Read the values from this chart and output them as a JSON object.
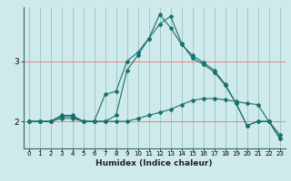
{
  "xlabel": "Humidex (Indice chaleur)",
  "bg_color": "#ceeaea",
  "line_color": "#1a7070",
  "grid_color_h": "#f08080",
  "grid_color_v": "#a0c8c8",
  "xlim": [
    -0.5,
    23.5
  ],
  "ylim": [
    1.55,
    3.9
  ],
  "yticks": [
    2,
    3
  ],
  "xticks": [
    0,
    1,
    2,
    3,
    4,
    5,
    6,
    7,
    8,
    9,
    10,
    11,
    12,
    13,
    14,
    15,
    16,
    17,
    18,
    19,
    20,
    21,
    22,
    23
  ],
  "series1_x": [
    0,
    1,
    2,
    3,
    4,
    5,
    6,
    7,
    8,
    9,
    10,
    11,
    12,
    13,
    14,
    15,
    16,
    17,
    18,
    19,
    20,
    21,
    22,
    23
  ],
  "series1_y": [
    2.0,
    2.0,
    2.0,
    2.05,
    2.05,
    2.0,
    2.0,
    2.0,
    2.0,
    2.0,
    2.05,
    2.1,
    2.15,
    2.2,
    2.28,
    2.35,
    2.38,
    2.38,
    2.36,
    2.33,
    2.3,
    2.28,
    2.0,
    1.78
  ],
  "series2_x": [
    0,
    1,
    2,
    3,
    4,
    5,
    6,
    7,
    8,
    9,
    10,
    11,
    12,
    13,
    14,
    15,
    16,
    17,
    18,
    19,
    20,
    21,
    22,
    23
  ],
  "series2_y": [
    2.0,
    2.0,
    2.0,
    2.1,
    2.1,
    2.0,
    2.0,
    2.0,
    2.1,
    2.85,
    3.1,
    3.38,
    3.78,
    3.56,
    3.28,
    3.1,
    2.98,
    2.85,
    2.62,
    2.3,
    1.93,
    2.0,
    2.0,
    1.72
  ],
  "series3_x": [
    0,
    1,
    2,
    3,
    4,
    5,
    6,
    7,
    8,
    9,
    10,
    11,
    12,
    13,
    14,
    15,
    16,
    17,
    18,
    19,
    20,
    21,
    22,
    23
  ],
  "series3_y": [
    2.0,
    2.0,
    2.0,
    2.08,
    2.08,
    2.0,
    2.0,
    2.45,
    2.5,
    3.0,
    3.15,
    3.38,
    3.62,
    3.75,
    3.3,
    3.05,
    2.95,
    2.82,
    2.6,
    2.3,
    1.93,
    2.0,
    2.0,
    1.72
  ]
}
